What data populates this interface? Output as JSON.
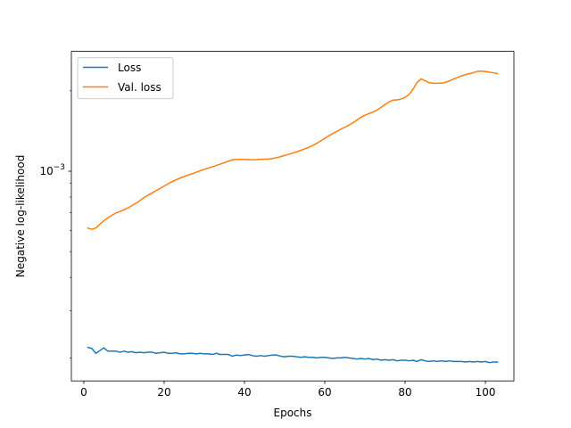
{
  "chart_data": {
    "type": "line",
    "title": "",
    "xlabel": "Epochs",
    "ylabel": "Negative log-likelihood",
    "xlim": [
      -3.1,
      107.1
    ],
    "ylim": [
      0.000164,
      0.00281
    ],
    "yscale": "log",
    "xticks": [
      0,
      20,
      40,
      60,
      80,
      100
    ],
    "yticks": [
      {
        "value": 0.001,
        "base": "10",
        "exponent": "−3"
      }
    ],
    "grid": false,
    "legend": {
      "placement": "top-left"
    },
    "series": [
      {
        "name": "Loss",
        "color": "#1f77b4",
        "x": [
          1,
          2,
          3,
          4,
          5,
          6,
          7,
          8,
          9,
          10,
          11,
          12,
          13,
          14,
          15,
          16,
          17,
          18,
          19,
          20,
          21,
          22,
          23,
          24,
          25,
          26,
          27,
          28,
          29,
          30,
          31,
          32,
          33,
          34,
          35,
          36,
          37,
          38,
          39,
          40,
          41,
          42,
          43,
          44,
          45,
          46,
          47,
          48,
          49,
          50,
          51,
          52,
          53,
          54,
          55,
          56,
          57,
          58,
          59,
          60,
          61,
          62,
          63,
          64,
          65,
          66,
          67,
          68,
          69,
          70,
          71,
          72,
          73,
          74,
          75,
          76,
          77,
          78,
          79,
          80,
          81,
          82,
          83,
          84,
          85,
          86,
          87,
          88,
          89,
          90,
          91,
          92,
          93,
          94,
          95,
          96,
          97,
          98,
          99,
          100,
          101,
          102,
          103
        ],
        "y": [
          0.000219,
          0.000217,
          0.000208,
          0.000213,
          0.000218,
          0.000212,
          0.000212,
          0.000212,
          0.00021,
          0.000212,
          0.00021,
          0.000211,
          0.000209,
          0.00021,
          0.000209,
          0.00021,
          0.00021,
          0.000208,
          0.000209,
          0.00021,
          0.000208,
          0.000208,
          0.000209,
          0.000207,
          0.000207,
          0.000208,
          0.000208,
          0.000207,
          0.000208,
          0.000207,
          0.000207,
          0.000206,
          0.000208,
          0.000206,
          0.000206,
          0.000206,
          0.000203,
          0.000205,
          0.000204,
          0.000205,
          0.000206,
          0.000204,
          0.000203,
          0.000204,
          0.000203,
          0.000204,
          0.000205,
          0.000205,
          0.000203,
          0.000202,
          0.000203,
          0.000203,
          0.000202,
          0.000201,
          0.000202,
          0.000201,
          0.000201,
          0.0002,
          0.000201,
          0.000201,
          0.0002,
          0.000199,
          0.0002,
          0.0002,
          0.000201,
          0.0002,
          0.000199,
          0.000198,
          0.000199,
          0.000198,
          0.000199,
          0.000197,
          0.000198,
          0.000196,
          0.000197,
          0.000196,
          0.000197,
          0.000195,
          0.000196,
          0.000196,
          0.000195,
          0.000196,
          0.000194,
          0.000197,
          0.000195,
          0.000194,
          0.000195,
          0.000194,
          0.000195,
          0.000194,
          0.000195,
          0.000194,
          0.000194,
          0.000194,
          0.000193,
          0.000194,
          0.000193,
          0.000194,
          0.000193,
          0.000194,
          0.000192,
          0.000193,
          0.000193
        ]
      },
      {
        "name": "Val. loss",
        "color": "#ff7f0e",
        "x": [
          1,
          2,
          3,
          4,
          5,
          6,
          7,
          8,
          9,
          10,
          11,
          12,
          13,
          14,
          15,
          16,
          17,
          18,
          19,
          20,
          21,
          22,
          23,
          24,
          25,
          26,
          27,
          28,
          29,
          30,
          31,
          32,
          33,
          34,
          35,
          36,
          37,
          38,
          39,
          40,
          41,
          42,
          43,
          44,
          45,
          46,
          47,
          48,
          49,
          50,
          51,
          52,
          53,
          54,
          55,
          56,
          57,
          58,
          59,
          60,
          61,
          62,
          63,
          64,
          65,
          66,
          67,
          68,
          69,
          70,
          71,
          72,
          73,
          74,
          75,
          76,
          77,
          78,
          79,
          80,
          81,
          82,
          83,
          84,
          85,
          86,
          87,
          88,
          89,
          90,
          91,
          92,
          93,
          94,
          95,
          96,
          97,
          98,
          99,
          100,
          101,
          102,
          103
        ],
        "y": [
          0.000613,
          0.000606,
          0.000613,
          0.000633,
          0.000653,
          0.000669,
          0.000684,
          0.000697,
          0.000707,
          0.000717,
          0.000729,
          0.000743,
          0.000759,
          0.000777,
          0.000797,
          0.000813,
          0.000829,
          0.000846,
          0.000862,
          0.00088,
          0.000898,
          0.000914,
          0.000929,
          0.000943,
          0.000955,
          0.000967,
          0.000978,
          0.000991,
          0.001004,
          0.001016,
          0.001027,
          0.001039,
          0.001051,
          0.001063,
          0.001076,
          0.00109,
          0.001103,
          0.001107,
          0.001107,
          0.001106,
          0.001105,
          0.001104,
          0.001105,
          0.001107,
          0.001109,
          0.001111,
          0.001116,
          0.001124,
          0.001134,
          0.001145,
          0.001157,
          0.001169,
          0.001181,
          0.001196,
          0.001212,
          0.001228,
          0.001248,
          0.001272,
          0.001299,
          0.001327,
          0.001357,
          0.001383,
          0.001409,
          0.001437,
          0.001459,
          0.001488,
          0.001518,
          0.001553,
          0.00159,
          0.001621,
          0.001643,
          0.001667,
          0.001694,
          0.001733,
          0.001777,
          0.001817,
          0.001846,
          0.00185,
          0.001863,
          0.001889,
          0.001936,
          0.002031,
          0.002149,
          0.002217,
          0.002181,
          0.002145,
          0.002135,
          0.002135,
          0.002138,
          0.002149,
          0.002176,
          0.002211,
          0.002243,
          0.002272,
          0.002298,
          0.002318,
          0.002337,
          0.002364,
          0.002371,
          0.00236,
          0.002348,
          0.002335,
          0.002321
        ]
      }
    ]
  }
}
